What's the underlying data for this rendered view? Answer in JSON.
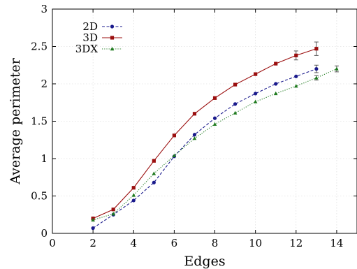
{
  "chart_data": {
    "type": "line",
    "title": "",
    "xlabel": "Edges",
    "ylabel": "Average perimeter",
    "xlim": [
      0,
      15
    ],
    "ylim": [
      0,
      3
    ],
    "xticks": [
      0,
      2,
      4,
      6,
      8,
      10,
      12,
      14
    ],
    "yticks": [
      0,
      0.5,
      1,
      1.5,
      2,
      2.5,
      3
    ],
    "xtick_labels": [
      "0",
      "2",
      "4",
      "6",
      "8",
      "10",
      "12",
      "14"
    ],
    "ytick_labels": [
      "0",
      "0.5",
      "1",
      "1.5",
      "2",
      "2.5",
      "3"
    ],
    "grid": true,
    "legend_position": "top-left",
    "series": [
      {
        "name": "2D",
        "color": "#1a1a8c",
        "line_style": "dashed",
        "marker": "circle",
        "x": [
          2,
          3,
          4,
          5,
          6,
          7,
          8,
          9,
          10,
          11,
          12,
          13
        ],
        "y": [
          0.07,
          0.25,
          0.44,
          0.68,
          1.03,
          1.32,
          1.54,
          1.73,
          1.87,
          2.0,
          2.1,
          2.2
        ],
        "err": [
          0,
          0,
          0,
          0,
          0,
          0,
          0,
          0,
          0,
          0,
          0,
          0.05
        ]
      },
      {
        "name": "3D",
        "color": "#9b0f0f",
        "line_style": "solid",
        "marker": "square",
        "x": [
          2,
          3,
          4,
          5,
          6,
          7,
          8,
          9,
          10,
          11,
          12,
          13
        ],
        "y": [
          0.2,
          0.32,
          0.61,
          0.97,
          1.31,
          1.6,
          1.81,
          1.99,
          2.13,
          2.27,
          2.38,
          2.47
        ],
        "err": [
          0,
          0,
          0,
          0,
          0,
          0,
          0,
          0,
          0,
          0,
          0.06,
          0.09
        ]
      },
      {
        "name": "3DX",
        "color": "#1e7a1e",
        "line_style": "dotted",
        "marker": "triangle",
        "x": [
          2,
          3,
          4,
          5,
          6,
          7,
          8,
          9,
          10,
          11,
          12,
          13,
          14
        ],
        "y": [
          0.18,
          0.26,
          0.51,
          0.8,
          1.04,
          1.27,
          1.46,
          1.61,
          1.76,
          1.87,
          1.97,
          2.08,
          2.2
        ],
        "err": [
          0,
          0,
          0,
          0,
          0,
          0,
          0,
          0,
          0,
          0,
          0,
          0.03,
          0.04
        ]
      }
    ]
  }
}
